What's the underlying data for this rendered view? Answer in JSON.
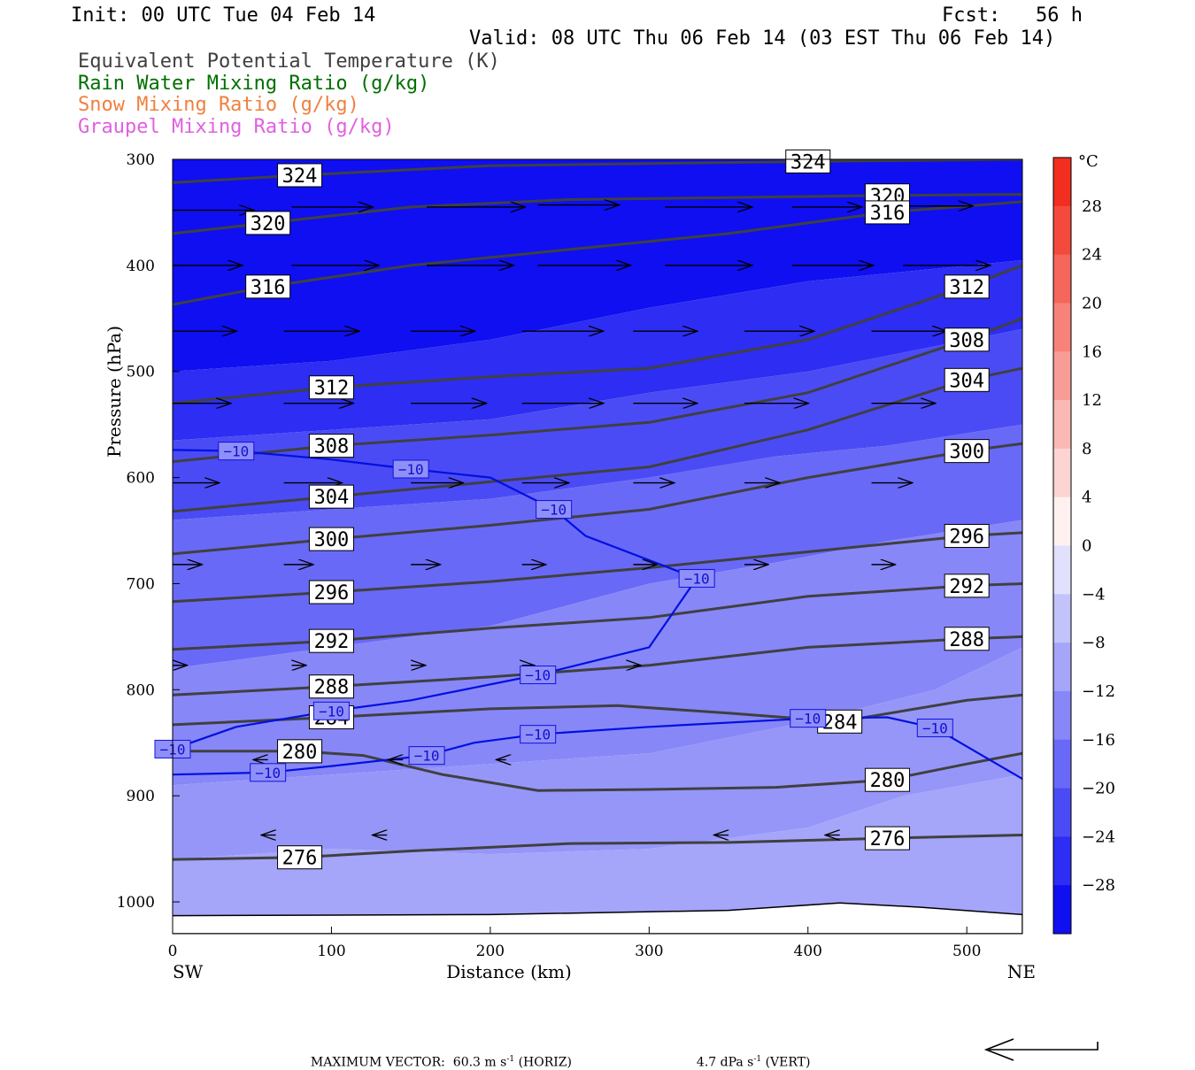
{
  "header": {
    "init": "Init: 00 UTC Tue 04 Feb 14",
    "fcst": "Fcst:   56 h",
    "valid": "Valid: 08 UTC Thu 06 Feb 14 (03 EST Thu 06 Feb 14)",
    "legend": [
      {
        "text": "Equivalent Potential Temperature (K)",
        "color": "#404040"
      },
      {
        "text": "Rain Water Mixing Ratio (g/kg)",
        "color": "#007000"
      },
      {
        "text": "Snow Mixing Ratio (g/kg)",
        "color": "#f08040"
      },
      {
        "text": "Graupel Mixing Ratio (g/kg)",
        "color": "#e060e0"
      }
    ]
  },
  "footer": {
    "max_vector": "MAXIMUM VECTOR:  60.3 m s",
    "horiz": "(HORIZ)",
    "vert": "4.7 dPa s",
    "vert_unit": "(VERT)",
    "sup": "-1"
  },
  "chart_data": {
    "type": "contour",
    "xlabel": "Distance (km)",
    "ylabel": "Pressure (hPa)",
    "xlim": [
      0,
      535
    ],
    "ylim": [
      300,
      1030
    ],
    "x_ticks": [
      0,
      100,
      200,
      300,
      400,
      500
    ],
    "y_ticks": [
      300,
      400,
      500,
      600,
      700,
      800,
      900,
      1000
    ],
    "x_end_labels": {
      "left": "SW",
      "right": "NE"
    },
    "colorbar": {
      "unit": "°C",
      "ticks": [
        28,
        24,
        20,
        16,
        12,
        8,
        4,
        0,
        -4,
        -8,
        -12,
        -16,
        -20,
        -24,
        -28
      ],
      "range": [
        -32,
        32
      ],
      "neg_color": "#0000f0",
      "pos_color": "#f02010"
    },
    "shading_bands": [
      {
        "temp": -30,
        "points": [
          [
            0,
            300
          ],
          [
            535,
            300
          ],
          [
            535,
            395
          ],
          [
            400,
            415
          ],
          [
            300,
            440
          ],
          [
            200,
            470
          ],
          [
            100,
            490
          ],
          [
            0,
            500
          ]
        ]
      },
      {
        "temp": -26,
        "points": [
          [
            0,
            500
          ],
          [
            100,
            490
          ],
          [
            200,
            470
          ],
          [
            300,
            440
          ],
          [
            400,
            415
          ],
          [
            535,
            395
          ],
          [
            535,
            460
          ],
          [
            400,
            500
          ],
          [
            300,
            520
          ],
          [
            200,
            545
          ],
          [
            100,
            555
          ],
          [
            0,
            565
          ]
        ]
      },
      {
        "temp": -22,
        "points": [
          [
            0,
            565
          ],
          [
            100,
            555
          ],
          [
            200,
            545
          ],
          [
            300,
            520
          ],
          [
            400,
            500
          ],
          [
            535,
            460
          ],
          [
            535,
            550
          ],
          [
            450,
            570
          ],
          [
            380,
            580
          ],
          [
            300,
            600
          ],
          [
            200,
            620
          ],
          [
            100,
            630
          ],
          [
            0,
            640
          ]
        ]
      },
      {
        "temp": -18,
        "points": [
          [
            0,
            640
          ],
          [
            100,
            630
          ],
          [
            200,
            620
          ],
          [
            300,
            600
          ],
          [
            380,
            580
          ],
          [
            450,
            570
          ],
          [
            535,
            550
          ],
          [
            535,
            640
          ],
          [
            450,
            660
          ],
          [
            380,
            680
          ],
          [
            300,
            700
          ],
          [
            250,
            720
          ],
          [
            200,
            740
          ],
          [
            100,
            760
          ],
          [
            0,
            780
          ]
        ]
      },
      {
        "temp": -14,
        "points": [
          [
            0,
            780
          ],
          [
            100,
            760
          ],
          [
            200,
            740
          ],
          [
            250,
            720
          ],
          [
            300,
            700
          ],
          [
            380,
            680
          ],
          [
            450,
            660
          ],
          [
            535,
            640
          ],
          [
            535,
            760
          ],
          [
            480,
            800
          ],
          [
            400,
            830
          ],
          [
            300,
            860
          ],
          [
            200,
            870
          ],
          [
            100,
            880
          ],
          [
            0,
            890
          ]
        ]
      },
      {
        "temp": -12,
        "points": [
          [
            0,
            890
          ],
          [
            100,
            880
          ],
          [
            200,
            870
          ],
          [
            300,
            860
          ],
          [
            400,
            830
          ],
          [
            480,
            800
          ],
          [
            535,
            760
          ],
          [
            535,
            880
          ],
          [
            460,
            900
          ],
          [
            400,
            930
          ],
          [
            300,
            950
          ],
          [
            200,
            955
          ],
          [
            100,
            950
          ],
          [
            0,
            960
          ]
        ]
      },
      {
        "temp": -10,
        "points": [
          [
            0,
            960
          ],
          [
            100,
            950
          ],
          [
            200,
            955
          ],
          [
            300,
            950
          ],
          [
            400,
            930
          ],
          [
            460,
            900
          ],
          [
            535,
            880
          ],
          [
            535,
            1030
          ],
          [
            0,
            1030
          ]
        ]
      }
    ],
    "theta_e_lines": [
      {
        "label": "324",
        "points": [
          [
            0,
            322
          ],
          [
            80,
            315
          ],
          [
            200,
            306
          ],
          [
            300,
            304
          ],
          [
            400,
            302
          ],
          [
            535,
            300
          ]
        ]
      },
      {
        "label": "320",
        "points": [
          [
            0,
            370
          ],
          [
            60,
            360
          ],
          [
            150,
            345
          ],
          [
            250,
            338
          ],
          [
            350,
            336
          ],
          [
            450,
            334
          ],
          [
            535,
            333
          ]
        ]
      },
      {
        "label": "316",
        "points": [
          [
            0,
            437
          ],
          [
            60,
            420
          ],
          [
            150,
            400
          ],
          [
            250,
            385
          ],
          [
            350,
            370
          ],
          [
            450,
            350
          ],
          [
            535,
            340
          ]
        ]
      },
      {
        "label": "312",
        "points": [
          [
            0,
            530
          ],
          [
            100,
            515
          ],
          [
            200,
            505
          ],
          [
            300,
            497
          ],
          [
            400,
            470
          ],
          [
            500,
            420
          ],
          [
            535,
            400
          ]
        ]
      },
      {
        "label": "308",
        "points": [
          [
            0,
            585
          ],
          [
            100,
            570
          ],
          [
            200,
            560
          ],
          [
            300,
            548
          ],
          [
            400,
            520
          ],
          [
            500,
            470
          ],
          [
            535,
            450
          ]
        ]
      },
      {
        "label": "304",
        "points": [
          [
            0,
            632
          ],
          [
            100,
            618
          ],
          [
            200,
            604
          ],
          [
            300,
            590
          ],
          [
            400,
            555
          ],
          [
            500,
            508
          ],
          [
            535,
            497
          ]
        ]
      },
      {
        "label": "300",
        "points": [
          [
            0,
            672
          ],
          [
            100,
            658
          ],
          [
            200,
            645
          ],
          [
            300,
            630
          ],
          [
            400,
            600
          ],
          [
            500,
            575
          ],
          [
            535,
            568
          ]
        ]
      },
      {
        "label": "296",
        "points": [
          [
            0,
            717
          ],
          [
            100,
            708
          ],
          [
            200,
            698
          ],
          [
            300,
            685
          ],
          [
            400,
            670
          ],
          [
            500,
            655
          ],
          [
            535,
            652
          ]
        ]
      },
      {
        "label": "292",
        "points": [
          [
            0,
            762
          ],
          [
            100,
            754
          ],
          [
            200,
            742
          ],
          [
            300,
            732
          ],
          [
            400,
            712
          ],
          [
            500,
            702
          ],
          [
            535,
            700
          ]
        ]
      },
      {
        "label": "288",
        "points": [
          [
            0,
            805
          ],
          [
            100,
            797
          ],
          [
            200,
            788
          ],
          [
            300,
            777
          ],
          [
            400,
            760
          ],
          [
            500,
            752
          ],
          [
            535,
            750
          ]
        ]
      },
      {
        "label": "284",
        "points": [
          [
            0,
            833
          ],
          [
            100,
            826
          ],
          [
            200,
            818
          ],
          [
            280,
            815
          ],
          [
            350,
            822
          ],
          [
            420,
            830
          ],
          [
            500,
            810
          ],
          [
            535,
            805
          ]
        ]
      },
      {
        "label": "280",
        "points": [
          [
            0,
            858
          ],
          [
            80,
            858
          ],
          [
            120,
            862
          ],
          [
            170,
            880
          ],
          [
            230,
            895
          ],
          [
            300,
            894
          ],
          [
            380,
            892
          ],
          [
            450,
            885
          ],
          [
            500,
            870
          ],
          [
            535,
            860
          ]
        ]
      },
      {
        "label": "276",
        "points": [
          [
            0,
            960
          ],
          [
            80,
            958
          ],
          [
            150,
            952
          ],
          [
            250,
            945
          ],
          [
            350,
            944
          ],
          [
            450,
            940
          ],
          [
            535,
            937
          ]
        ]
      }
    ],
    "temp_minus10_lines": [
      {
        "points": [
          [
            0,
            574
          ],
          [
            40,
            575
          ],
          [
            100,
            583
          ],
          [
            150,
            592
          ],
          [
            200,
            600
          ],
          [
            240,
            630
          ],
          [
            260,
            655
          ],
          [
            330,
            695
          ],
          [
            300,
            760
          ],
          [
            230,
            786
          ],
          [
            150,
            810
          ],
          [
            100,
            820
          ],
          [
            40,
            835
          ],
          [
            0,
            856
          ]
        ]
      },
      {
        "points": [
          [
            0,
            880
          ],
          [
            60,
            878
          ],
          [
            100,
            872
          ],
          [
            160,
            862
          ],
          [
            190,
            850
          ],
          [
            230,
            842
          ],
          [
            300,
            835
          ],
          [
            400,
            827
          ],
          [
            450,
            826
          ],
          [
            480,
            836
          ],
          [
            535,
            884
          ]
        ]
      }
    ],
    "wind_vectors": [
      [
        0,
        348,
        70
      ],
      [
        75,
        345,
        70
      ],
      [
        160,
        345,
        85
      ],
      [
        230,
        343,
        70
      ],
      [
        310,
        345,
        75
      ],
      [
        390,
        345,
        60
      ],
      [
        460,
        344,
        60
      ],
      [
        535,
        343,
        0
      ],
      [
        0,
        400,
        60
      ],
      [
        75,
        400,
        75
      ],
      [
        160,
        400,
        75
      ],
      [
        230,
        400,
        80
      ],
      [
        310,
        400,
        75
      ],
      [
        390,
        400,
        70
      ],
      [
        460,
        400,
        75
      ],
      [
        535,
        400,
        0
      ],
      [
        0,
        462,
        55
      ],
      [
        70,
        462,
        65
      ],
      [
        150,
        462,
        55
      ],
      [
        220,
        462,
        70
      ],
      [
        290,
        462,
        55
      ],
      [
        360,
        462,
        60
      ],
      [
        440,
        462,
        65
      ],
      [
        535,
        462,
        0
      ],
      [
        0,
        530,
        50
      ],
      [
        70,
        530,
        60
      ],
      [
        150,
        530,
        65
      ],
      [
        220,
        530,
        70
      ],
      [
        290,
        530,
        55
      ],
      [
        360,
        530,
        55
      ],
      [
        440,
        530,
        55
      ],
      [
        535,
        530,
        0
      ],
      [
        0,
        605,
        40
      ],
      [
        70,
        605,
        50
      ],
      [
        150,
        605,
        45
      ],
      [
        220,
        605,
        40
      ],
      [
        290,
        605,
        35
      ],
      [
        360,
        605,
        30
      ],
      [
        440,
        605,
        35
      ],
      [
        535,
        605,
        0
      ],
      [
        0,
        682,
        25
      ],
      [
        70,
        682,
        25
      ],
      [
        150,
        682,
        25
      ],
      [
        220,
        682,
        20
      ],
      [
        290,
        682,
        20
      ],
      [
        360,
        682,
        20
      ],
      [
        440,
        682,
        20
      ],
      [
        535,
        682,
        0
      ],
      [
        0,
        777,
        12
      ],
      [
        75,
        777,
        12
      ],
      [
        150,
        777,
        12
      ],
      [
        220,
        777,
        10
      ],
      [
        290,
        777,
        6
      ],
      [
        535,
        777,
        0
      ],
      [
        60,
        866,
        -12
      ],
      [
        145,
        866,
        -12
      ],
      [
        210,
        866,
        -8
      ],
      [
        65,
        937,
        -12
      ],
      [
        135,
        937,
        -12
      ],
      [
        350,
        937,
        -12
      ],
      [
        420,
        937,
        -12
      ]
    ]
  }
}
